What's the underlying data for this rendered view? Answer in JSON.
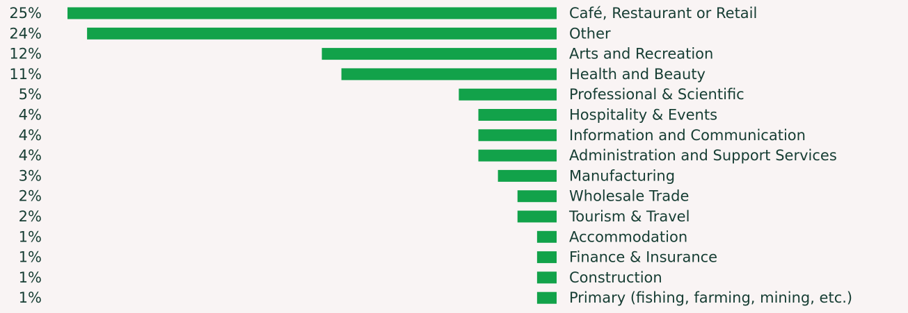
{
  "chart_data": {
    "type": "bar",
    "orientation": "horizontal",
    "categories": [
      "Café, Restaurant or Retail",
      "Other",
      "Arts and Recreation",
      "Health and Beauty",
      "Professional & Scientific",
      "Hospitality & Events",
      "Information and Communication",
      "Administration and Support Services",
      "Manufacturing",
      "Wholesale Trade",
      "Tourism & Travel",
      "Accommodation",
      "Finance & Insurance",
      "Construction",
      "Primary (fishing, farming, mining, etc.)"
    ],
    "values": [
      25,
      24,
      12,
      11,
      5,
      4,
      4,
      4,
      3,
      2,
      2,
      1,
      1,
      1,
      1
    ],
    "value_labels": [
      "25%",
      "24%",
      "12%",
      "11%",
      "5%",
      "4%",
      "4%",
      "4%",
      "3%",
      "2%",
      "2%",
      "1%",
      "1%",
      "1%",
      "1%"
    ],
    "color": "#12a24a",
    "xlim": [
      0,
      25
    ]
  }
}
